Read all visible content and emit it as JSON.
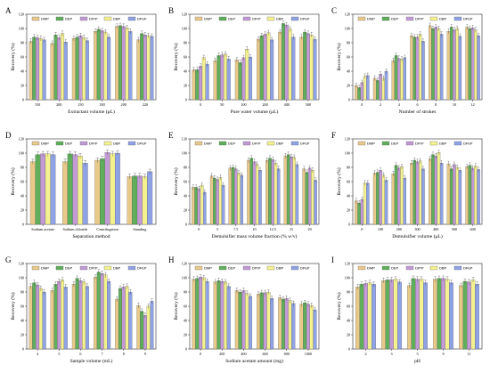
{
  "figure": {
    "colors": [
      "#e8c98a",
      "#5fae5a",
      "#c29ad6",
      "#f4f28e",
      "#8fa2e6"
    ],
    "hatches": [
      "",
      "",
      "",
      "",
      ""
    ]
  },
  "chart_data": [
    {
      "panel": "A",
      "type": "bar",
      "series_names": [
        "DMP",
        "DEP",
        "DPrP",
        "DBP",
        "DPeP"
      ],
      "categories": [
        "150",
        "200",
        "150",
        "180",
        "200",
        "220"
      ],
      "xlabel": "Extractant volume (μL)",
      "ylabel": "Recovery (%)",
      "ylim": [
        0,
        120
      ],
      "yticks": [
        0,
        20,
        40,
        60,
        80,
        100,
        120
      ],
      "series": [
        {
          "name": "DMP",
          "values": [
            82,
            79,
            86,
            96,
            103,
            84
          ]
        },
        {
          "name": "DEP",
          "values": [
            88,
            91,
            88,
            99,
            104,
            93
          ]
        },
        {
          "name": "DPrP",
          "values": [
            87,
            87,
            90,
            97,
            103,
            91
          ]
        },
        {
          "name": "DBP",
          "values": [
            86,
            93,
            87,
            95,
            101,
            90
          ]
        },
        {
          "name": "DPeP",
          "values": [
            84,
            81,
            83,
            88,
            96,
            89
          ]
        }
      ]
    },
    {
      "panel": "B",
      "type": "bar",
      "series_names": [
        "DMP",
        "DEP",
        "DPrP",
        "DBP",
        "DPeP"
      ],
      "categories": [
        "0",
        "50",
        "100",
        "200",
        "400",
        "500"
      ],
      "xlabel": "Pure water volume (μL)",
      "ylabel": "Recovery (%)",
      "ylim": [
        0,
        120
      ],
      "yticks": [
        0,
        20,
        40,
        60,
        80,
        100,
        120
      ],
      "series": [
        {
          "name": "DMP",
          "values": [
            42,
            55,
            56,
            85,
            95,
            88
          ]
        },
        {
          "name": "DEP",
          "values": [
            42,
            62,
            52,
            90,
            107,
            95
          ]
        },
        {
          "name": "DPrP",
          "values": [
            47,
            63,
            59,
            92,
            105,
            93
          ]
        },
        {
          "name": "DBP",
          "values": [
            59,
            64,
            71,
            94,
            99,
            91
          ]
        },
        {
          "name": "DPeP",
          "values": [
            50,
            57,
            60,
            84,
            88,
            85
          ]
        }
      ]
    },
    {
      "panel": "C",
      "type": "bar",
      "series_names": [
        "DMP",
        "DEP",
        "DPrP",
        "DBP",
        "DPeP"
      ],
      "categories": [
        "0",
        "2",
        "4",
        "6",
        "8",
        "10",
        "12"
      ],
      "xlabel": "Number of strokes",
      "ylabel": "Recovery (%)",
      "ylim": [
        0,
        120
      ],
      "yticks": [
        0,
        20,
        40,
        60,
        80,
        100,
        120
      ],
      "series": [
        {
          "name": "DMP",
          "values": [
            20,
            30,
            55,
            90,
            104,
            96,
            102
          ]
        },
        {
          "name": "DEP",
          "values": [
            17,
            27,
            62,
            88,
            100,
            102,
            100
          ]
        },
        {
          "name": "DPrP",
          "values": [
            24,
            36,
            58,
            88,
            102,
            98,
            101
          ]
        },
        {
          "name": "DBP",
          "values": [
            33,
            30,
            57,
            92,
            100,
            100,
            98
          ]
        },
        {
          "name": "DPeP",
          "values": [
            34,
            40,
            59,
            82,
            92,
            89,
            90
          ]
        }
      ]
    },
    {
      "panel": "D",
      "type": "bar",
      "series_names": [
        "DMP",
        "DEP",
        "DPrP",
        "DBP",
        "DPeP"
      ],
      "categories": [
        "Sodium acetate",
        "Sodium chloride",
        "Centrifugation",
        "Standing"
      ],
      "xlabel": "Separation method",
      "ylabel": "Recovery (%)",
      "ylim": [
        0,
        120
      ],
      "yticks": [
        0,
        20,
        40,
        60,
        80,
        100,
        120
      ],
      "series": [
        {
          "name": "DMP",
          "values": [
            88,
            88,
            90,
            67
          ]
        },
        {
          "name": "DEP",
          "values": [
            98,
            99,
            92,
            68
          ]
        },
        {
          "name": "DPrP",
          "values": [
            99,
            98,
            101,
            68
          ]
        },
        {
          "name": "DBP",
          "values": [
            99,
            96,
            99,
            67
          ]
        },
        {
          "name": "DPeP",
          "values": [
            98,
            86,
            100,
            74
          ]
        }
      ]
    },
    {
      "panel": "E",
      "type": "bar",
      "series_names": [
        "DMP",
        "DEP",
        "DPrP",
        "DBP",
        "DPeP"
      ],
      "categories": [
        "0",
        "5",
        "7.5",
        "10",
        "12.5",
        "15",
        "20"
      ],
      "xlabel": "Demulsifier mass volume fraction (% w/v)",
      "ylabel": "Recovery (%)",
      "ylim": [
        0,
        120
      ],
      "yticks": [
        0,
        20,
        40,
        60,
        80,
        100,
        120
      ],
      "series": [
        {
          "name": "DMP",
          "values": [
            52,
            68,
            79,
            90,
            90,
            96,
            78
          ]
        },
        {
          "name": "DEP",
          "values": [
            52,
            65,
            80,
            93,
            93,
            98,
            73
          ]
        },
        {
          "name": "DPrP",
          "values": [
            50,
            63,
            78,
            88,
            91,
            95,
            79
          ]
        },
        {
          "name": "DBP",
          "values": [
            55,
            66,
            72,
            84,
            86,
            94,
            76
          ]
        },
        {
          "name": "DPeP",
          "values": [
            45,
            55,
            69,
            76,
            78,
            84,
            62
          ]
        }
      ]
    },
    {
      "panel": "F",
      "type": "bar",
      "series_names": [
        "DMP",
        "DEP",
        "DPrP",
        "DBP",
        "DPeP"
      ],
      "categories": [
        "0",
        "100",
        "200",
        "300",
        "400",
        "500",
        "600"
      ],
      "xlabel": "Demulsifier volume (μL)",
      "ylabel": "Recovery (%)",
      "ylim": [
        0,
        120
      ],
      "yticks": [
        0,
        20,
        40,
        60,
        80,
        100,
        120
      ],
      "series": [
        {
          "name": "DMP",
          "values": [
            33,
            72,
            71,
            86,
            92,
            85,
            81
          ]
        },
        {
          "name": "DEP",
          "values": [
            30,
            73,
            83,
            90,
            98,
            78,
            83
          ]
        },
        {
          "name": "DPrP",
          "values": [
            35,
            76,
            79,
            88,
            96,
            84,
            79
          ]
        },
        {
          "name": "DBP",
          "values": [
            58,
            69,
            81,
            89,
            101,
            80,
            82
          ]
        },
        {
          "name": "DPeP",
          "values": [
            58,
            62,
            65,
            78,
            86,
            76,
            77
          ]
        }
      ]
    },
    {
      "panel": "G",
      "type": "bar",
      "series_names": [
        "DMP",
        "DEP",
        "DPrP",
        "DBP",
        "DPeP"
      ],
      "categories": [
        "4",
        "5",
        "6",
        "7",
        "8",
        "9"
      ],
      "xlabel": "Sample volume (mL)",
      "ylabel": "Recovery (%)",
      "ylim": [
        0,
        120
      ],
      "yticks": [
        0,
        20,
        40,
        60,
        80,
        100,
        120
      ],
      "series": [
        {
          "name": "DMP",
          "values": [
            88,
            82,
            91,
            101,
            70,
            61
          ]
        },
        {
          "name": "DEP",
          "values": [
            93,
            91,
            99,
            108,
            85,
            53
          ]
        },
        {
          "name": "DPrP",
          "values": [
            90,
            95,
            96,
            106,
            87,
            47
          ]
        },
        {
          "name": "DBP",
          "values": [
            85,
            97,
            94,
            104,
            88,
            60
          ]
        },
        {
          "name": "DPeP",
          "values": [
            80,
            87,
            88,
            95,
            80,
            67
          ]
        }
      ]
    },
    {
      "panel": "H",
      "type": "bar",
      "series_names": [
        "DMP",
        "DEP",
        "DPrP",
        "DBP",
        "DPeP"
      ],
      "categories": [
        "0",
        "200",
        "400",
        "600",
        "800",
        "1000"
      ],
      "xlabel": "Sodium acetate amount (mg)",
      "ylabel": "Recovery (%)",
      "ylim": [
        0,
        120
      ],
      "yticks": [
        0,
        20,
        40,
        60,
        80,
        100,
        120
      ],
      "series": [
        {
          "name": "DMP",
          "values": [
            98,
            94,
            82,
            77,
            72,
            63
          ]
        },
        {
          "name": "DEP",
          "values": [
            99,
            96,
            80,
            79,
            70,
            65
          ]
        },
        {
          "name": "DPrP",
          "values": [
            101,
            95,
            82,
            79,
            71,
            63
          ]
        },
        {
          "name": "DBP",
          "values": [
            100,
            94,
            78,
            80,
            68,
            61
          ]
        },
        {
          "name": "DPeP",
          "values": [
            95,
            88,
            74,
            71,
            64,
            55
          ]
        }
      ]
    },
    {
      "panel": "I",
      "type": "bar",
      "series_names": [
        "DMP",
        "DEP",
        "DPrP",
        "DBP",
        "DPeP"
      ],
      "categories": [
        "2",
        "3",
        "5",
        "9",
        "11"
      ],
      "xlabel": "pH",
      "ylabel": "Recovery (%)",
      "ylim": [
        0,
        120
      ],
      "yticks": [
        0,
        20,
        40,
        60,
        80,
        100,
        120
      ],
      "series": [
        {
          "name": "DMP",
          "values": [
            87,
            96,
            89,
            98,
            89
          ]
        },
        {
          "name": "DEP",
          "values": [
            91,
            97,
            99,
            99,
            95
          ]
        },
        {
          "name": "DPrP",
          "values": [
            92,
            97,
            98,
            99,
            94
          ]
        },
        {
          "name": "DBP",
          "values": [
            93,
            98,
            98,
            98,
            97
          ]
        },
        {
          "name": "DPeP",
          "values": [
            91,
            94,
            93,
            93,
            91
          ]
        }
      ]
    }
  ]
}
